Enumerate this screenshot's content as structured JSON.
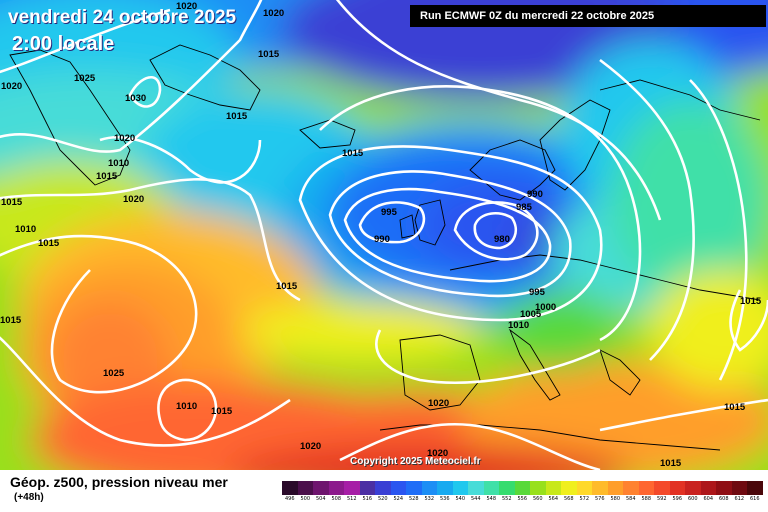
{
  "map": {
    "date_title": "vendredi 24 octobre 2025",
    "time_title": "2:00 locale",
    "run_info": "Run ECMWF 0Z du mercredi 22 octobre 2025",
    "copyright": "Copyright 2025 Meteociel.fr",
    "parameter": "Géop. z500, pression niveau mer",
    "lead_time": "(+48h)",
    "isobar_labels": [
      "1020",
      "1020",
      "1015",
      "1025",
      "1020",
      "1030",
      "1015",
      "1020",
      "1015",
      "1015",
      "1010",
      "1015",
      "1015",
      "1020",
      "1015",
      "1010",
      "995",
      "990",
      "990",
      "985",
      "980",
      "995",
      "1000",
      "1005",
      "1010",
      "1015",
      "1025",
      "1010",
      "1015",
      "1020",
      "1020",
      "1015",
      "1015",
      "1020",
      "1015"
    ],
    "legend": {
      "ticks": [
        "496",
        "500",
        "504",
        "508",
        "512",
        "516",
        "520",
        "524",
        "528",
        "532",
        "536",
        "540",
        "544",
        "548",
        "552",
        "556",
        "560",
        "564",
        "568",
        "572",
        "576",
        "580",
        "584",
        "588",
        "592",
        "596",
        "600",
        "604",
        "608",
        "612",
        "616"
      ],
      "colors": [
        "#2a0a2a",
        "#4b0f4b",
        "#6e156e",
        "#8c1a8c",
        "#a61ea6",
        "#4b2fa3",
        "#3a3fd4",
        "#2a55f0",
        "#1f6df7",
        "#1c8ef5",
        "#18aaf0",
        "#20c8ee",
        "#47dcd8",
        "#3fe0a8",
        "#35dc6e",
        "#58d93a",
        "#98e01c",
        "#c8e81a",
        "#f0ef1e",
        "#ffd92a",
        "#ffbb2a",
        "#ff9e2a",
        "#ff8230",
        "#ff6630",
        "#f44a2a",
        "#e23224",
        "#c9221f",
        "#ad161a",
        "#8f0e14",
        "#6f0a10",
        "#4a070a"
      ]
    }
  }
}
